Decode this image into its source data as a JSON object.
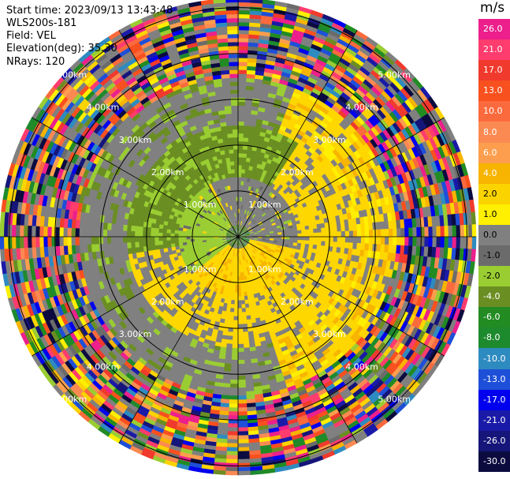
{
  "header": {
    "start_time": "Start time: 2023/09/13 13:43:48",
    "instrument": "WLS200s-181",
    "field": "Field: VEL",
    "elevation": "Elevation(deg): 35.30",
    "nrays": "NRays: 120"
  },
  "colorbar": {
    "unit": "m/s",
    "ticks": [
      "26.0",
      "21.0",
      "17.0",
      "13.0",
      "10.0",
      "8.0",
      "6.0",
      "4.0",
      "2.0",
      "1.0",
      "0.0",
      "-1.0",
      "-2.0",
      "-4.0",
      "-6.0",
      "-8.0",
      "-10.0",
      "-13.0",
      "-17.0",
      "-21.0",
      "-26.0",
      "-30.0"
    ],
    "colors": [
      "#ec1f8c",
      "#ff3c6e",
      "#f03a2d",
      "#f8501e",
      "#fa6a3c",
      "#fb8a52",
      "#fc9e4d",
      "#f7b400",
      "#fbd400",
      "#ffef00",
      "#808080",
      "#6b6b6b",
      "#9acd32",
      "#6b8e23",
      "#228b22",
      "#1e8a2e",
      "#2e8bc0",
      "#1e4fd8",
      "#0000ee",
      "#1a1aa8",
      "#15157a",
      "#0b0b40"
    ]
  },
  "chart_data": {
    "type": "polar",
    "title": "",
    "field": "VEL",
    "units": "m/s",
    "range_rings_km": [
      1.0,
      2.0,
      3.0,
      4.0,
      5.0
    ],
    "range_labels": [
      "1.00km",
      "2.00km",
      "3.00km",
      "4.00km",
      "5.00km"
    ],
    "max_range_km": 5.2,
    "azimuth_spokes_deg": [
      0,
      30,
      60,
      90,
      120,
      150,
      180,
      210,
      240,
      270,
      300,
      330
    ],
    "nrays": 120,
    "colorbar_range": [
      -30.0,
      26.0
    ]
  }
}
